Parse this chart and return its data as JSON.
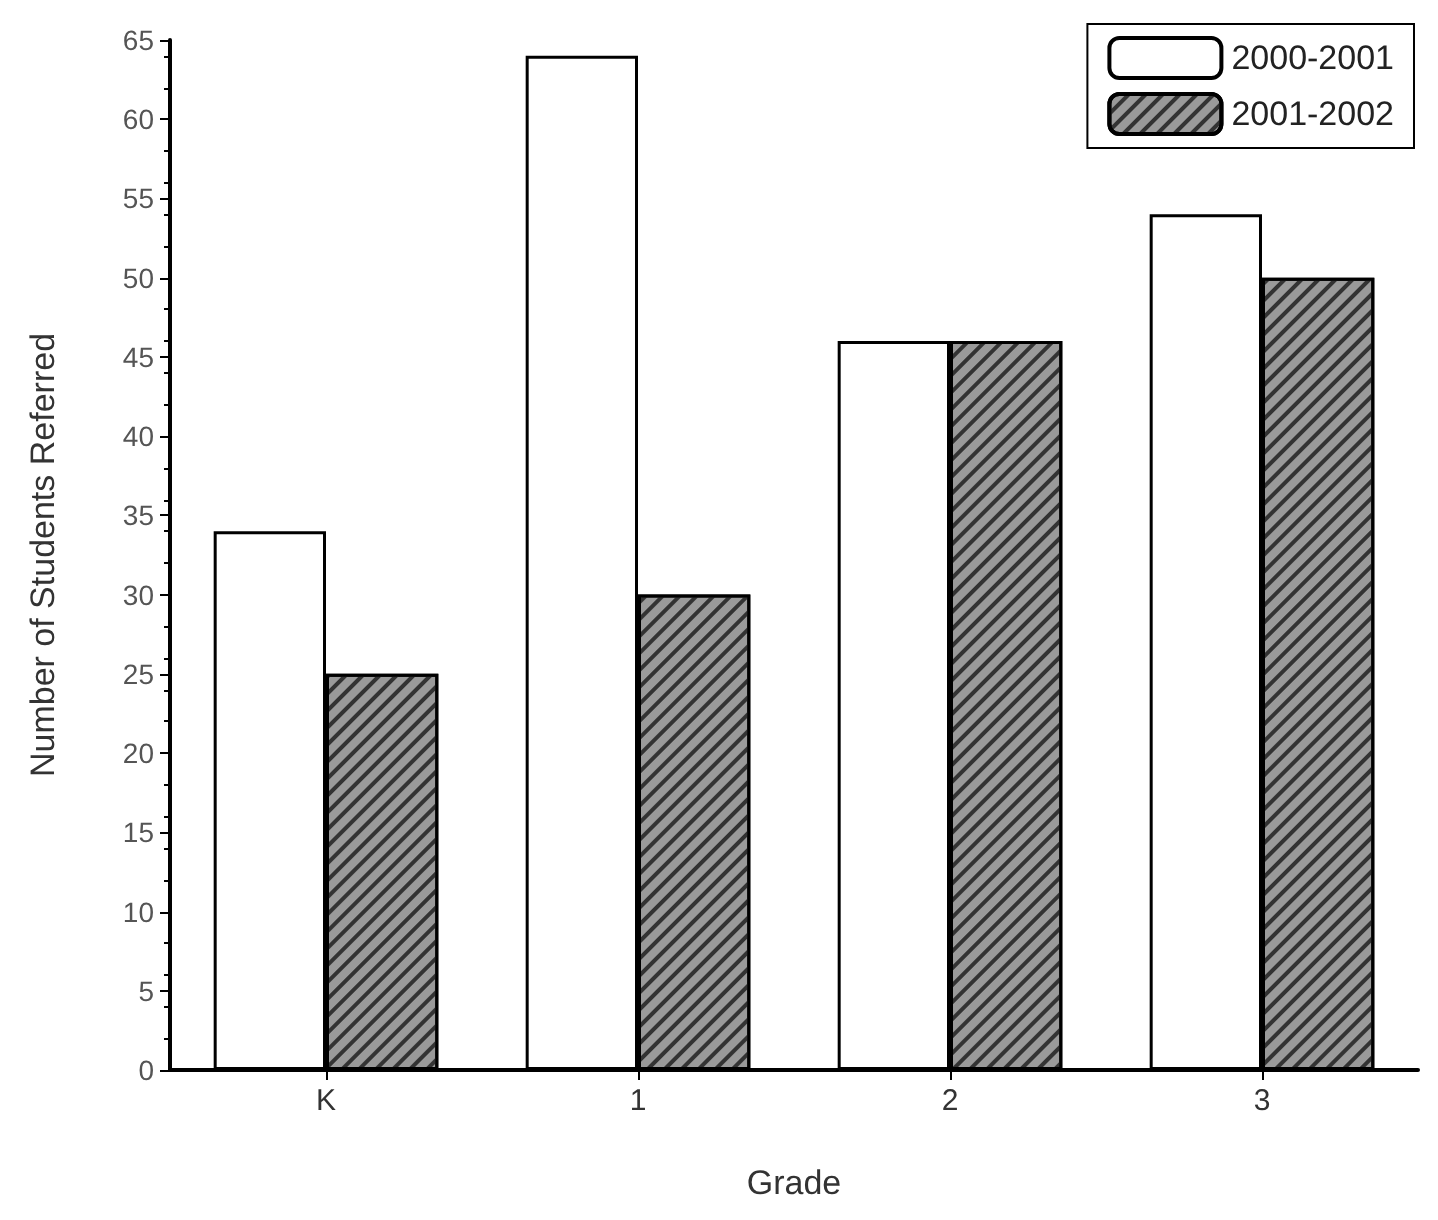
{
  "chart_data": {
    "type": "bar",
    "xlabel": "Grade",
    "ylabel": "Number of Students Referred",
    "categories": [
      "K",
      "1",
      "2",
      "3"
    ],
    "series": [
      {
        "name": "2000-2001",
        "color": "#ffffff",
        "values": [
          34,
          64,
          46,
          54
        ]
      },
      {
        "name": "2001-2002",
        "color": "#9a9a9a",
        "values": [
          25,
          30,
          46,
          50
        ]
      }
    ],
    "ylim": [
      0,
      65
    ],
    "yticks": [
      0,
      5,
      10,
      15,
      20,
      25,
      30,
      35,
      40,
      45,
      50,
      55,
      60,
      65
    ],
    "grid": false,
    "legend": "top right"
  }
}
